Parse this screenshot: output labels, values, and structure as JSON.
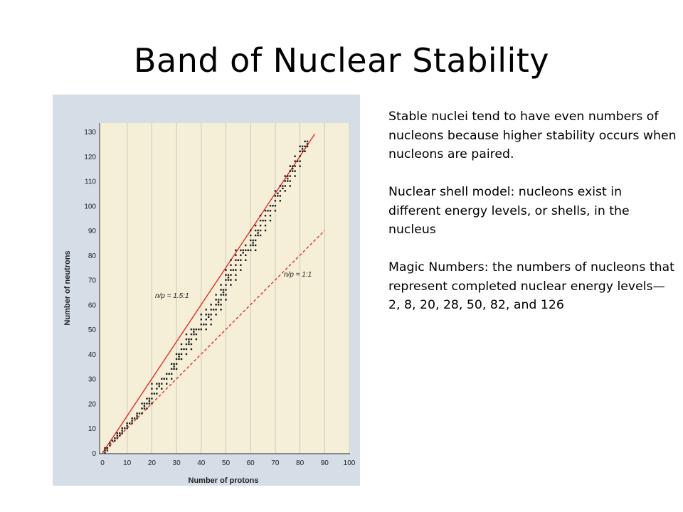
{
  "slide": {
    "title": "Band of Nuclear Stability"
  },
  "notes": [
    "Stable nuclei tend to have even numbers of nucleons because higher stability occurs when nucleons are paired.",
    "Nuclear shell model: nucleons exist in different energy levels, or shells, in the nucleus",
    "Magic Numbers: the numbers of nucleons that represent completed nuclear energy levels—2, 8, 20, 28, 50, 82, and 126"
  ],
  "colors": {
    "panel": "#d5dde6",
    "plot_bg": "#f5efd7",
    "gridline": "#c9c9b7",
    "red_line": "#e32b2b",
    "dots": "#1f1f1f"
  },
  "chart_data": {
    "type": "scatter",
    "xlabel": "Number of protons",
    "ylabel": "Number of neutrons",
    "xlim": [
      0,
      100
    ],
    "ylim": [
      0,
      130
    ],
    "x_ticks": [
      0,
      10,
      20,
      30,
      40,
      50,
      60,
      70,
      80,
      90,
      100
    ],
    "y_ticks": [
      0,
      10,
      20,
      30,
      40,
      50,
      60,
      70,
      80,
      90,
      100,
      110,
      120,
      130
    ],
    "vertical_grid": true,
    "horizontal_grid": false,
    "lines": [
      {
        "label": "n/p = 1.5:1",
        "style": "solid",
        "points": [
          [
            0,
            0
          ],
          [
            86,
            129
          ]
        ]
      },
      {
        "label": "n/p = 1:1",
        "style": "dashed",
        "points": [
          [
            0,
            0
          ],
          [
            90,
            90
          ]
        ]
      }
    ],
    "band": [
      {
        "z": 1,
        "n": [
          0,
          2
        ]
      },
      {
        "z": 2,
        "n": [
          1,
          2
        ]
      },
      {
        "z": 3,
        "n": [
          3,
          4
        ]
      },
      {
        "z": 4,
        "n": [
          5,
          5
        ]
      },
      {
        "z": 5,
        "n": [
          5,
          6
        ]
      },
      {
        "z": 6,
        "n": [
          6,
          8
        ]
      },
      {
        "z": 7,
        "n": [
          7,
          8
        ]
      },
      {
        "z": 8,
        "n": [
          8,
          10
        ]
      },
      {
        "z": 9,
        "n": [
          10,
          10
        ]
      },
      {
        "z": 10,
        "n": [
          10,
          12
        ]
      },
      {
        "z": 11,
        "n": [
          12,
          12
        ]
      },
      {
        "z": 12,
        "n": [
          12,
          14
        ]
      },
      {
        "z": 13,
        "n": [
          14,
          14
        ]
      },
      {
        "z": 14,
        "n": [
          14,
          16
        ]
      },
      {
        "z": 15,
        "n": [
          16,
          16
        ]
      },
      {
        "z": 16,
        "n": [
          16,
          20
        ]
      },
      {
        "z": 17,
        "n": [
          18,
          20
        ]
      },
      {
        "z": 18,
        "n": [
          18,
          22
        ]
      },
      {
        "z": 19,
        "n": [
          20,
          22
        ]
      },
      {
        "z": 20,
        "n": [
          20,
          28
        ]
      },
      {
        "z": 21,
        "n": [
          24,
          24
        ]
      },
      {
        "z": 22,
        "n": [
          24,
          28
        ]
      },
      {
        "z": 23,
        "n": [
          27,
          28
        ]
      },
      {
        "z": 24,
        "n": [
          26,
          30
        ]
      },
      {
        "z": 25,
        "n": [
          30,
          30
        ]
      },
      {
        "z": 26,
        "n": [
          28,
          32
        ]
      },
      {
        "z": 27,
        "n": [
          32,
          32
        ]
      },
      {
        "z": 28,
        "n": [
          30,
          36
        ]
      },
      {
        "z": 29,
        "n": [
          34,
          36
        ]
      },
      {
        "z": 30,
        "n": [
          34,
          40
        ]
      },
      {
        "z": 31,
        "n": [
          38,
          40
        ]
      },
      {
        "z": 32,
        "n": [
          38,
          44
        ]
      },
      {
        "z": 33,
        "n": [
          42,
          42
        ]
      },
      {
        "z": 34,
        "n": [
          40,
          48
        ]
      },
      {
        "z": 35,
        "n": [
          44,
          46
        ]
      },
      {
        "z": 36,
        "n": [
          42,
          50
        ]
      },
      {
        "z": 37,
        "n": [
          48,
          50
        ]
      },
      {
        "z": 38,
        "n": [
          46,
          50
        ]
      },
      {
        "z": 39,
        "n": [
          50,
          50
        ]
      },
      {
        "z": 40,
        "n": [
          50,
          56
        ]
      },
      {
        "z": 41,
        "n": [
          52,
          52
        ]
      },
      {
        "z": 42,
        "n": [
          50,
          58
        ]
      },
      {
        "z": 43,
        "n": [
          55,
          56
        ]
      },
      {
        "z": 44,
        "n": [
          52,
          60
        ]
      },
      {
        "z": 45,
        "n": [
          58,
          58
        ]
      },
      {
        "z": 46,
        "n": [
          56,
          64
        ]
      },
      {
        "z": 47,
        "n": [
          60,
          62
        ]
      },
      {
        "z": 48,
        "n": [
          58,
          68
        ]
      },
      {
        "z": 49,
        "n": [
          64,
          66
        ]
      },
      {
        "z": 50,
        "n": [
          62,
          74
        ]
      },
      {
        "z": 51,
        "n": [
          70,
          72
        ]
      },
      {
        "z": 52,
        "n": [
          68,
          78
        ]
      },
      {
        "z": 53,
        "n": [
          74,
          74
        ]
      },
      {
        "z": 54,
        "n": [
          70,
          82
        ]
      },
      {
        "z": 55,
        "n": [
          78,
          78
        ]
      },
      {
        "z": 56,
        "n": [
          74,
          82
        ]
      },
      {
        "z": 57,
        "n": [
          81,
          82
        ]
      },
      {
        "z": 58,
        "n": [
          78,
          84
        ]
      },
      {
        "z": 59,
        "n": [
          82,
          82
        ]
      },
      {
        "z": 60,
        "n": [
          82,
          90
        ]
      },
      {
        "z": 61,
        "n": [
          84,
          86
        ]
      },
      {
        "z": 62,
        "n": [
          82,
          92
        ]
      },
      {
        "z": 63,
        "n": [
          88,
          90
        ]
      },
      {
        "z": 64,
        "n": [
          88,
          96
        ]
      },
      {
        "z": 65,
        "n": [
          94,
          94
        ]
      },
      {
        "z": 66,
        "n": [
          90,
          98
        ]
      },
      {
        "z": 67,
        "n": [
          98,
          98
        ]
      },
      {
        "z": 68,
        "n": [
          94,
          100
        ]
      },
      {
        "z": 69,
        "n": [
          100,
          100
        ]
      },
      {
        "z": 70,
        "n": [
          98,
          106
        ]
      },
      {
        "z": 71,
        "n": [
          104,
          105
        ]
      },
      {
        "z": 72,
        "n": [
          102,
          108
        ]
      },
      {
        "z": 73,
        "n": [
          107,
          108
        ]
      },
      {
        "z": 74,
        "n": [
          106,
          112
        ]
      },
      {
        "z": 75,
        "n": [
          110,
          112
        ]
      },
      {
        "z": 76,
        "n": [
          108,
          116
        ]
      },
      {
        "z": 77,
        "n": [
          114,
          116
        ]
      },
      {
        "z": 78,
        "n": [
          112,
          120
        ]
      },
      {
        "z": 79,
        "n": [
          118,
          118
        ]
      },
      {
        "z": 80,
        "n": [
          116,
          124
        ]
      },
      {
        "z": 81,
        "n": [
          122,
          124
        ]
      },
      {
        "z": 82,
        "n": [
          122,
          126
        ]
      },
      {
        "z": 83,
        "n": [
          124,
          126
        ]
      }
    ]
  }
}
